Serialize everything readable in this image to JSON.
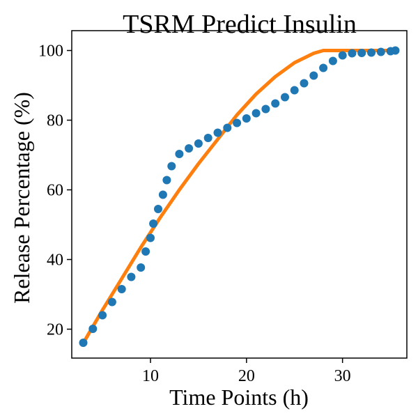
{
  "chart_data": {
    "type": "scatter",
    "title": "TSRM Predict Insulin",
    "xlabel": "Time Points (h)",
    "ylabel": "Release Percentage (%)",
    "xlim": [
      1.8,
      36.7
    ],
    "ylim": [
      11.7,
      105.7
    ],
    "xticks": [
      10,
      20,
      30
    ],
    "yticks": [
      20,
      40,
      60,
      80,
      100
    ],
    "grid": false,
    "legend": "none",
    "colors": {
      "series_points": "#1f77b4",
      "series_line": "#ff7f0e",
      "axes": "#000000",
      "background": "#ffffff"
    },
    "series": [
      {
        "kind": "scatter",
        "x": [
          3,
          4,
          5,
          6,
          7,
          8,
          9,
          9.5,
          10,
          10.3,
          10.8,
          11.3,
          11.7,
          12.2,
          13,
          14,
          15,
          16,
          17,
          18,
          19,
          20,
          21,
          22,
          23,
          24,
          25,
          26,
          27,
          28,
          29,
          30,
          31,
          32,
          33,
          34,
          35,
          35.5
        ],
        "y": [
          16.1,
          20.1,
          24.0,
          27.8,
          31.5,
          35.0,
          37.7,
          42.3,
          46.2,
          50.3,
          54.5,
          58.6,
          62.8,
          66.8,
          70.3,
          71.9,
          73.3,
          74.9,
          76.4,
          77.8,
          79.2,
          80.5,
          82.0,
          83.2,
          84.8,
          86.6,
          88.6,
          90.6,
          92.8,
          95.0,
          97.0,
          98.6,
          99.2,
          99.3,
          99.4,
          99.6,
          99.8,
          100.0
        ]
      },
      {
        "kind": "line",
        "x": [
          3,
          5,
          7,
          9,
          11,
          13,
          15,
          17,
          19,
          21,
          23,
          25,
          27,
          28,
          30,
          32,
          34,
          35.5
        ],
        "y": [
          16.0,
          25.5,
          34.5,
          43.5,
          52.0,
          60.0,
          67.5,
          74.5,
          81.5,
          87.5,
          92.5,
          96.5,
          99.2,
          100.0,
          100.0,
          100.0,
          100.0,
          100.0
        ]
      }
    ]
  }
}
